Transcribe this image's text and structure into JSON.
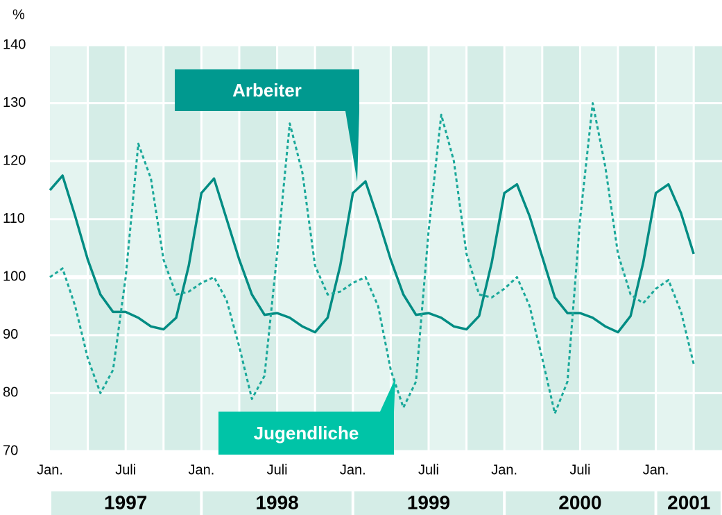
{
  "chart_data": {
    "type": "line",
    "y_unit_label": "%",
    "categories": [
      "Jan.",
      null,
      null,
      null,
      null,
      null,
      "Juli",
      null,
      null,
      null,
      null,
      null,
      "Jan.",
      null,
      null,
      null,
      null,
      null,
      "Juli",
      null,
      null,
      null,
      null,
      null,
      "Jan.",
      null,
      null,
      null,
      null,
      null,
      "Juli",
      null,
      null,
      null,
      null,
      null,
      "Jan.",
      null,
      null,
      null,
      null,
      null,
      "Juli",
      null,
      null,
      null,
      null,
      null,
      "Jan.",
      null,
      null,
      null
    ],
    "years": [
      "1997",
      "1998",
      "1999",
      "2000",
      "2001"
    ],
    "series": [
      {
        "name": "Arbeiter",
        "color": "#008c83",
        "dash": false,
        "values": [
          115,
          117.5,
          110.5,
          103,
          97,
          94,
          94,
          93,
          91.5,
          91,
          93,
          102,
          114.5,
          117,
          110,
          103,
          97,
          93.5,
          93.8,
          93,
          91.5,
          90.5,
          93,
          102,
          114.5,
          116.5,
          110,
          103,
          97,
          93.5,
          93.8,
          93,
          91.5,
          91,
          93.3,
          102.5,
          114.5,
          116,
          110.5,
          103.5,
          96.5,
          93.8,
          93.8,
          93,
          91.5,
          90.5,
          93.3,
          102.5,
          114.5,
          116,
          111,
          104
        ]
      },
      {
        "name": "Jugendliche",
        "color": "#1aa89a",
        "dash": true,
        "values": [
          100,
          101.5,
          95,
          86,
          80,
          84,
          100,
          123,
          117,
          103,
          97,
          97.5,
          99,
          100,
          96,
          88,
          79,
          83,
          104,
          126.5,
          118,
          102,
          97,
          97.5,
          99,
          100,
          95,
          84,
          77.5,
          82,
          108,
          128,
          120,
          104,
          97,
          96.5,
          98,
          100,
          95,
          86,
          76.5,
          82,
          110,
          130,
          119,
          104,
          97,
          95.5,
          98,
          99.5,
          94,
          85
        ]
      }
    ],
    "annotations": [
      {
        "text": "Arbeiter",
        "series": 0,
        "color": "#00998f"
      },
      {
        "text": "Jugendliche",
        "series": 1,
        "color": "#00c4a7"
      }
    ],
    "ylim": [
      70,
      140
    ],
    "yticks": [
      70,
      80,
      90,
      100,
      110,
      120,
      130,
      140
    ],
    "grid": true
  }
}
